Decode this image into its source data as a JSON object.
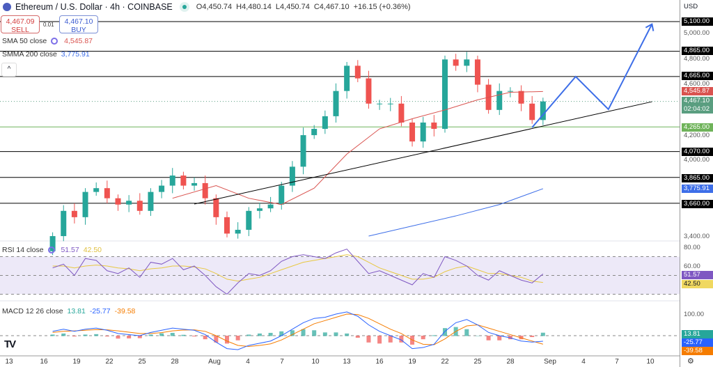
{
  "header": {
    "symbol": "Ethereum / U.S. Dollar · 4h · COINBASE",
    "open": "O4,450.74",
    "high": "H4,480.14",
    "low": "L4,450.74",
    "close": "C4,467.10",
    "change": "+16.15 (+0.36%)"
  },
  "trade": {
    "sell_price": "4,467.09",
    "sell_label": "SELL",
    "spread": "0.01",
    "buy_price": "4,467.10",
    "buy_label": "BUY"
  },
  "indicators": {
    "sma_label": "SMA 50 close",
    "sma_value": "4,545.87",
    "smma_label": "SMMA 200 close",
    "smma_value": "3,775.91",
    "rsi_label": "RSI 14 close",
    "rsi_value": "51.57",
    "rsi_ma_value": "42.50",
    "macd_label": "MACD 12 26 close",
    "macd_hist": "13.81",
    "macd_line": "-25.77",
    "macd_signal": "-39.58"
  },
  "axis": {
    "currency": "USD",
    "price_ticks": [
      "5,000.00",
      "4,800.00",
      "4,600.00",
      "4,200.00",
      "4,000.00",
      "3,400.00"
    ],
    "levels": [
      "5,100.00",
      "4,865.00",
      "4,665.00",
      "4,070.00",
      "3,865.00",
      "3,660.00"
    ],
    "support": "4,265.00",
    "sma_tag": "4,545.87",
    "price_tag": "4,467.10",
    "countdown": "02:04:02",
    "smma_tag": "3,775.91",
    "rsi_ticks": [
      "80.00",
      "60.00"
    ],
    "rsi_tag": "51.57",
    "rsi_ma_tag": "42.50",
    "macd_ticks": [
      "100.00"
    ],
    "macd_hist_tag": "13.81",
    "macd_tag": "-25.77",
    "signal_tag": "-39.58"
  },
  "colors": {
    "up": "#26a69a",
    "down": "#ef5350",
    "sma": "#d9534f",
    "smma": "#3d6ee8",
    "projection": "#3d6ee8",
    "support": "#6fb35a",
    "rsi": "#7e57c2",
    "rsi_ma": "#e8c840",
    "macd": "#2962ff",
    "signal": "#f57c00"
  },
  "chart_data": {
    "type": "candlestick",
    "x_ticks": [
      "13",
      "16",
      "19",
      "22",
      "25",
      "28",
      "Aug",
      "4",
      "7",
      "10",
      "13",
      "16",
      "19",
      "22",
      "25",
      "28",
      "Sep",
      "4",
      "7",
      "10"
    ],
    "ylim": [
      3350,
      5150
    ],
    "closes": [
      [
        "Jul 17",
        3400
      ],
      [
        "Jul 18",
        3600
      ],
      [
        "Jul 19",
        3550
      ],
      [
        "Jul 20",
        3750
      ],
      [
        "Jul 21",
        3780
      ],
      [
        "Jul 22",
        3700
      ],
      [
        "Jul 23",
        3650
      ],
      [
        "Jul 24",
        3680
      ],
      [
        "Jul 25",
        3600
      ],
      [
        "Jul 26",
        3750
      ],
      [
        "Jul 27",
        3800
      ],
      [
        "Jul 28",
        3880
      ],
      [
        "Jul 29",
        3800
      ],
      [
        "Jul 30",
        3820
      ],
      [
        "Jul 31",
        3700
      ],
      [
        "Aug 1",
        3550
      ],
      [
        "Aug 2",
        3420
      ],
      [
        "Aug 3",
        3450
      ],
      [
        "Aug 4",
        3600
      ],
      [
        "Aug 5",
        3620
      ],
      [
        "Aug 6",
        3650
      ],
      [
        "Aug 7",
        3800
      ],
      [
        "Aug 8",
        3950
      ],
      [
        "Aug 9",
        4200
      ],
      [
        "Aug 10",
        4250
      ],
      [
        "Aug 11",
        4350
      ],
      [
        "Aug 12",
        4550
      ],
      [
        "Aug 13",
        4750
      ],
      [
        "Aug 14",
        4650
      ],
      [
        "Aug 15",
        4450
      ],
      [
        "Aug 16",
        4450
      ],
      [
        "Aug 17",
        4450
      ],
      [
        "Aug 18",
        4300
      ],
      [
        "Aug 19",
        4150
      ],
      [
        "Aug 20",
        4300
      ],
      [
        "Aug 21",
        4250
      ],
      [
        "Aug 22",
        4800
      ],
      [
        "Aug 23",
        4750
      ],
      [
        "Aug 24",
        4800
      ],
      [
        "Aug 25",
        4600
      ],
      [
        "Aug 26",
        4400
      ],
      [
        "Aug 27",
        4550
      ],
      [
        "Aug 28",
        4550
      ],
      [
        "Aug 29",
        4450
      ],
      [
        "Aug 30",
        4320
      ],
      [
        "Aug 31",
        4467.1
      ]
    ],
    "sma50": [
      [
        "Jul 28",
        3700
      ],
      [
        "Aug 1",
        3800
      ],
      [
        "Aug 4",
        3700
      ],
      [
        "Aug 7",
        3650
      ],
      [
        "Aug 10",
        3780
      ],
      [
        "Aug 13",
        4050
      ],
      [
        "Aug 16",
        4250
      ],
      [
        "Aug 19",
        4330
      ],
      [
        "Aug 22",
        4400
      ],
      [
        "Aug 25",
        4480
      ],
      [
        "Aug 28",
        4540
      ],
      [
        "Aug 31",
        4545.87
      ]
    ],
    "smma200": [
      [
        "Aug 15",
        3400
      ],
      [
        "Aug 19",
        3480
      ],
      [
        "Aug 23",
        3560
      ],
      [
        "Aug 27",
        3650
      ],
      [
        "Aug 31",
        3775.91
      ]
    ],
    "levels": [
      5100,
      4865,
      4665,
      4070,
      3865,
      3660
    ],
    "support": 4265,
    "trendline": [
      [
        "Jul 30",
        3654
      ],
      [
        "Sep 10",
        4465
      ]
    ],
    "projection": [
      [
        "Aug 30",
        4261
      ],
      [
        "Sep 3",
        4664
      ],
      [
        "Sep 6",
        4405
      ],
      [
        "Sep 10",
        5080
      ]
    ],
    "rsi": [
      58,
      62,
      50,
      68,
      66,
      55,
      52,
      58,
      48,
      64,
      62,
      68,
      56,
      60,
      50,
      38,
      30,
      42,
      52,
      50,
      55,
      65,
      70,
      72,
      70,
      68,
      74,
      78,
      65,
      52,
      55,
      50,
      45,
      40,
      52,
      48,
      70,
      66,
      60,
      50,
      45,
      55,
      50,
      45,
      42,
      51.57
    ],
    "rsi_ma": [
      60,
      60,
      58,
      60,
      61,
      60,
      58,
      57,
      55,
      57,
      58,
      60,
      60,
      59,
      57,
      52,
      46,
      44,
      46,
      48,
      52,
      56,
      60,
      64,
      66,
      68,
      70,
      72,
      70,
      64,
      58,
      54,
      50,
      46,
      46,
      48,
      54,
      58,
      60,
      56,
      52,
      52,
      50,
      48,
      44,
      42.5
    ],
    "macd": [
      20,
      30,
      20,
      30,
      35,
      25,
      10,
      5,
      0,
      15,
      25,
      35,
      30,
      25,
      5,
      -30,
      -60,
      -65,
      -45,
      -35,
      -25,
      0,
      30,
      60,
      80,
      85,
      100,
      110,
      90,
      50,
      20,
      0,
      -20,
      -60,
      -55,
      -40,
      20,
      60,
      75,
      50,
      15,
      0,
      -10,
      -25,
      -30,
      -25.77
    ],
    "macd_signal": [
      15,
      20,
      22,
      25,
      28,
      27,
      22,
      16,
      10,
      10,
      14,
      22,
      26,
      27,
      20,
      0,
      -25,
      -45,
      -50,
      -45,
      -38,
      -20,
      5,
      30,
      55,
      70,
      85,
      100,
      98,
      80,
      55,
      30,
      10,
      -20,
      -40,
      -42,
      -15,
      20,
      45,
      50,
      35,
      20,
      5,
      -10,
      -25,
      -39.58
    ]
  }
}
